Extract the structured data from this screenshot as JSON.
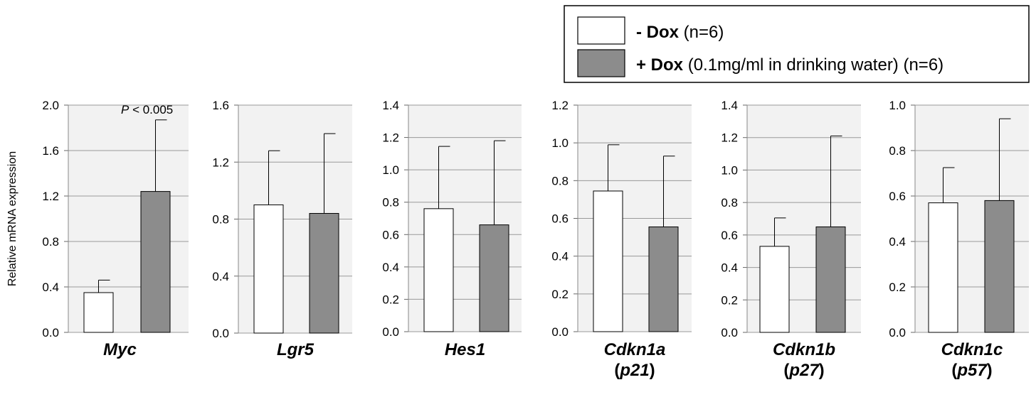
{
  "legend": {
    "items": [
      {
        "bold": "- Dox",
        "rest": " (n=6)",
        "color": "#ffffff"
      },
      {
        "bold": "+ Dox",
        "rest": " (0.1mg/ml in drinking water) (n=6)",
        "color": "#8c8c8c"
      }
    ]
  },
  "colors": {
    "minus_dox": "#ffffff",
    "plus_dox": "#8c8c8c",
    "plot_bg": "#f2f2f2",
    "grid": "#999999"
  },
  "chart_data": [
    {
      "type": "bar",
      "ylabel": "Relative mRNA expression",
      "ylim": [
        0,
        2.0
      ],
      "ticks": [
        "0.0",
        "0.4",
        "0.8",
        "1.2",
        "1.6",
        "2.0"
      ],
      "gene": {
        "name": "Myc",
        "pre": "",
        "sub": "",
        "post": ""
      },
      "annotation": {
        "italic": "P",
        "text": " < 0.005"
      },
      "values": [
        0.35,
        1.24
      ],
      "errors": [
        0.11,
        0.63
      ]
    },
    {
      "type": "bar",
      "ylabel": "",
      "ylim": [
        0,
        1.6
      ],
      "ticks": [
        "0.0",
        "0.4",
        "0.8",
        "1.2",
        "1.6"
      ],
      "gene": {
        "name": "Lgr5",
        "pre": "",
        "sub": "",
        "post": ""
      },
      "annotation": null,
      "values": [
        0.9,
        0.84
      ],
      "errors": [
        0.38,
        0.56
      ]
    },
    {
      "type": "bar",
      "ylabel": "",
      "ylim": [
        0,
        1.4
      ],
      "ticks": [
        "0.0",
        "0.2",
        "0.4",
        "0.6",
        "0.8",
        "1.0",
        "1.2",
        "1.4"
      ],
      "gene": {
        "name": "Hes1",
        "pre": "",
        "sub": "",
        "post": ""
      },
      "annotation": null,
      "values": [
        0.76,
        0.66
      ],
      "errors": [
        0.385,
        0.52
      ]
    },
    {
      "type": "bar",
      "ylabel": "",
      "ylim": [
        0,
        1.2
      ],
      "ticks": [
        "0.0",
        "0.2",
        "0.4",
        "0.6",
        "0.8",
        "1.0",
        "1.2"
      ],
      "gene": {
        "name": "Cdkn1a",
        "pre": "(",
        "sub": "p21",
        "post": ")"
      },
      "annotation": null,
      "values": [
        0.745,
        0.555
      ],
      "errors": [
        0.245,
        0.375
      ]
    },
    {
      "type": "bar",
      "ylabel": "",
      "ylim": [
        0,
        1.4
      ],
      "ticks": [
        "0.0",
        "0.2",
        "0.4",
        "0.6",
        "0.8",
        "1.0",
        "1.2",
        "1.4"
      ],
      "gene": {
        "name": "Cdkn1b",
        "pre": "(",
        "sub": "p27",
        "post": ")"
      },
      "annotation": null,
      "values": [
        0.53,
        0.65
      ],
      "errors": [
        0.175,
        0.56
      ]
    },
    {
      "type": "bar",
      "ylabel": "",
      "ylim": [
        0,
        1.0
      ],
      "ticks": [
        "0.0",
        "0.2",
        "0.4",
        "0.6",
        "0.8",
        "1.0"
      ],
      "gene": {
        "name": "Cdkn1c",
        "pre": "(",
        "sub": "p57",
        "post": ")"
      },
      "annotation": null,
      "values": [
        0.57,
        0.58
      ],
      "errors": [
        0.155,
        0.36
      ]
    }
  ]
}
